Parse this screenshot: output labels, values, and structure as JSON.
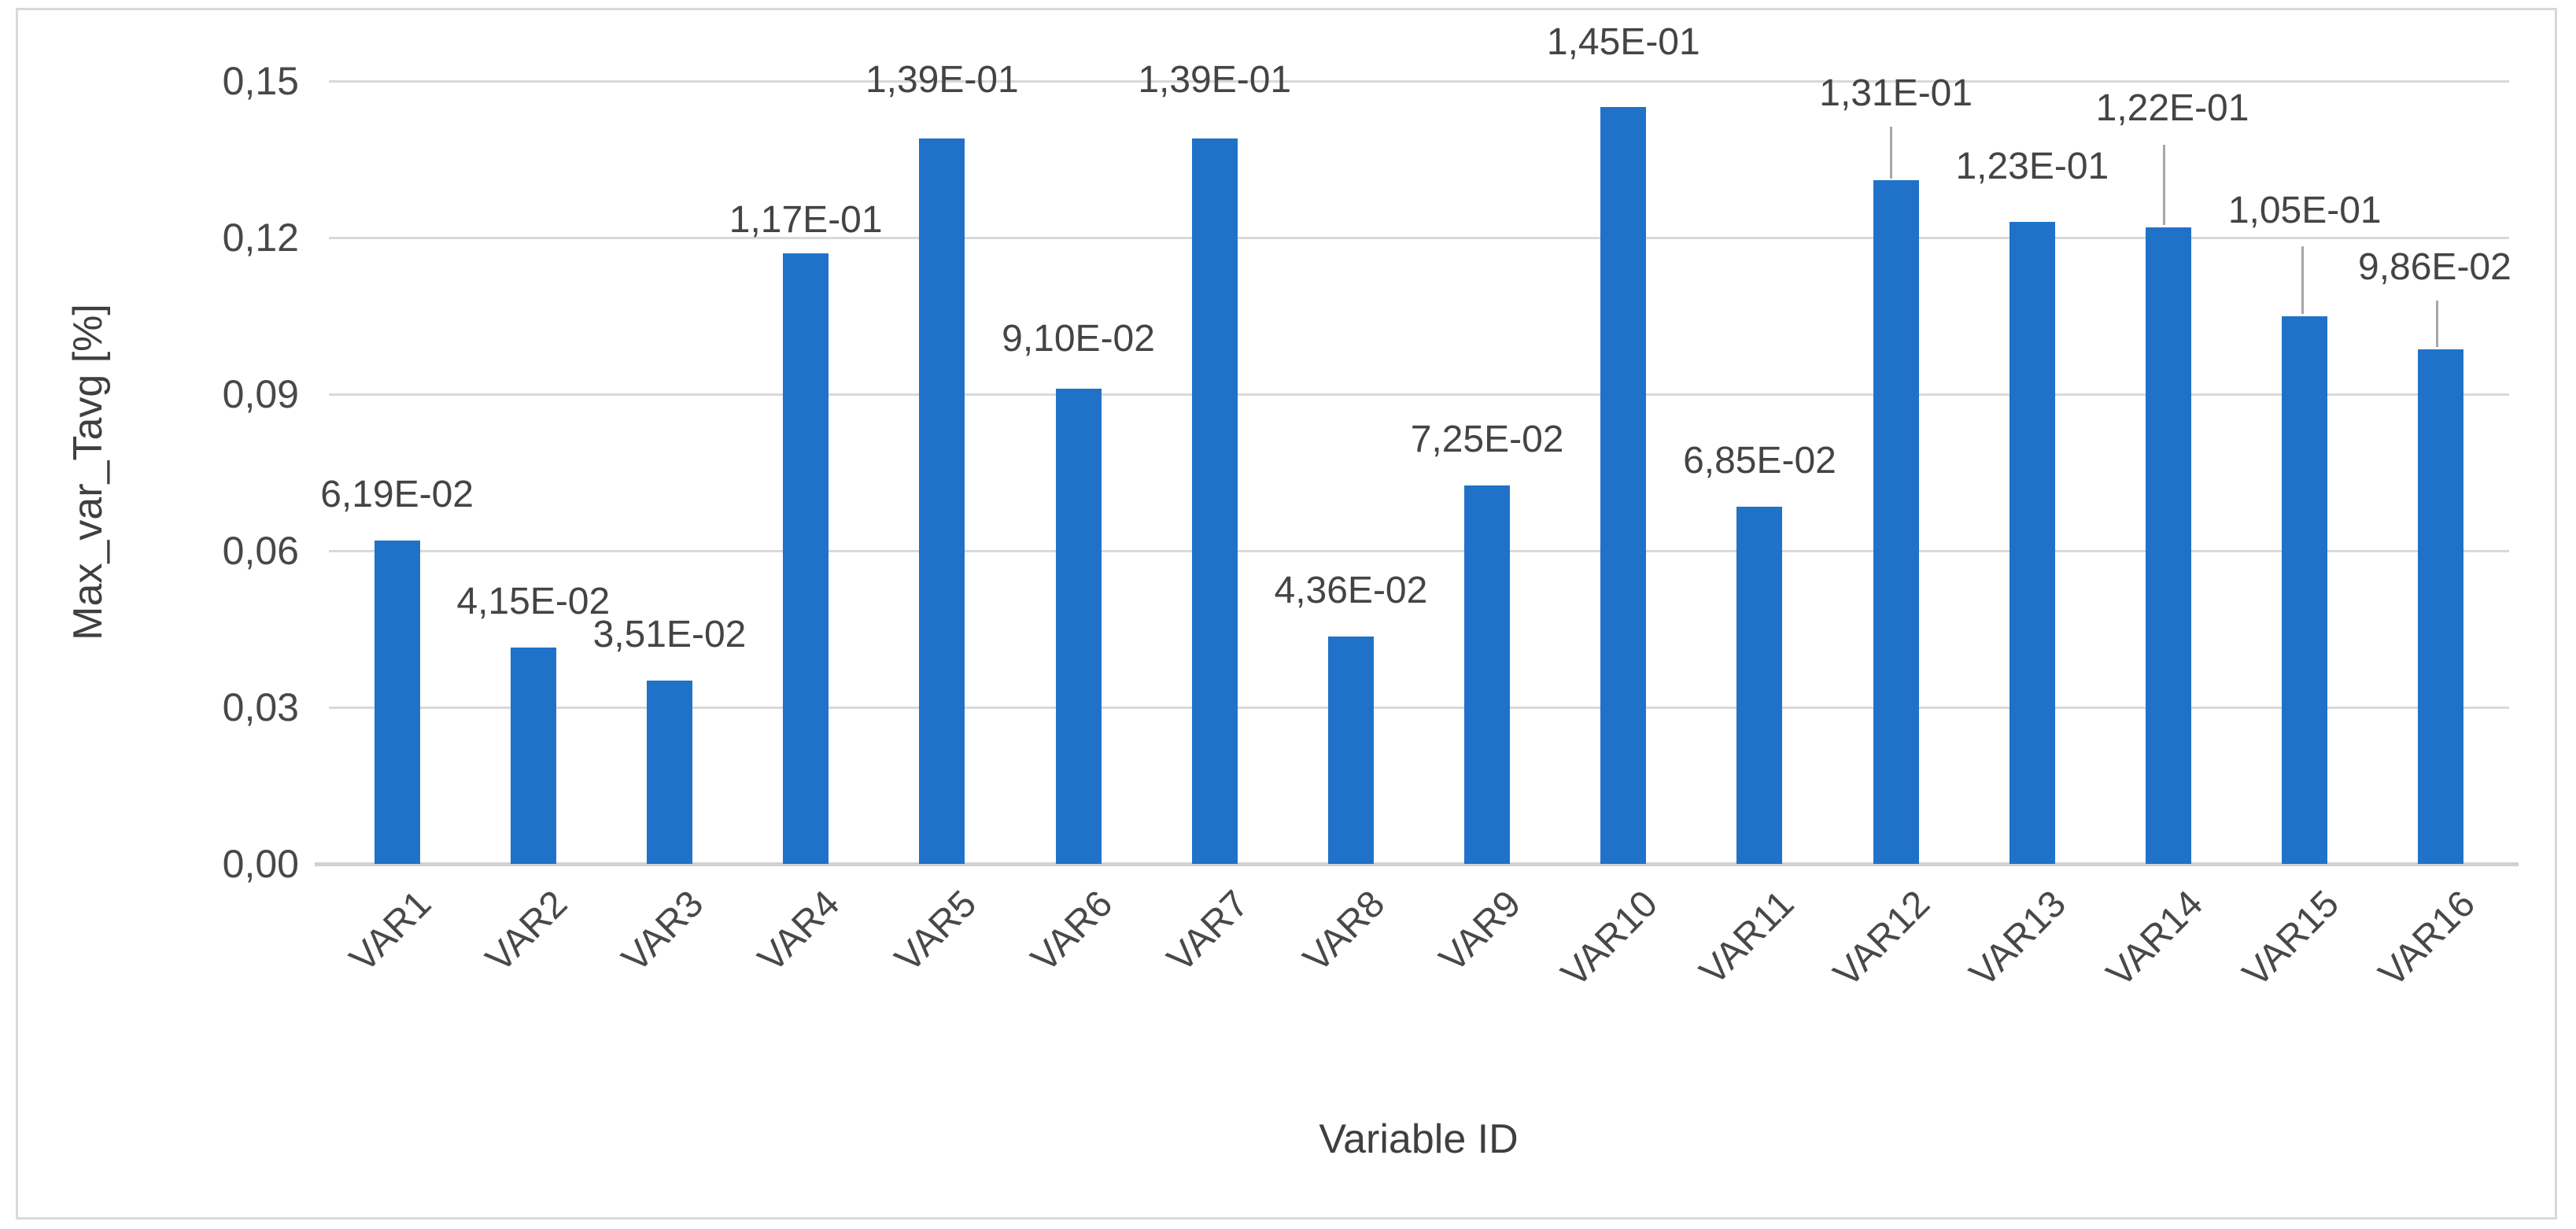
{
  "chart_data": {
    "type": "bar",
    "title": "",
    "xlabel": "Variable ID",
    "ylabel": "Max_var_Tavg [%]",
    "categories": [
      "VAR1",
      "VAR2",
      "VAR3",
      "VAR4",
      "VAR5",
      "VAR6",
      "VAR7",
      "VAR8",
      "VAR9",
      "VAR10",
      "VAR11",
      "VAR12",
      "VAR13",
      "VAR14",
      "VAR15",
      "VAR16"
    ],
    "values": [
      0.0619,
      0.0415,
      0.0351,
      0.117,
      0.139,
      0.091,
      0.139,
      0.0436,
      0.0725,
      0.145,
      0.0685,
      0.131,
      0.123,
      0.122,
      0.105,
      0.0986
    ],
    "value_labels": [
      "6,19E-02",
      "4,15E-02",
      "3,51E-02",
      "1,17E-01",
      "1,39E-01",
      "9,10E-02",
      "1,39E-01",
      "4,36E-02",
      "7,25E-02",
      "1,45E-01",
      "6,85E-02",
      "1,31E-01",
      "1,23E-01",
      "1,22E-01",
      "1,05E-01",
      "9,86E-02"
    ],
    "y_ticks": [
      "0,00",
      "0,03",
      "0,06",
      "0,09",
      "0,12",
      "0,15"
    ],
    "ylim": [
      0,
      0.15
    ],
    "grid": "horizontal-only",
    "legend": "none",
    "decimal_separator": ",",
    "bar_color": "#2072c8",
    "gridline_color": "#d9d9d9",
    "text_color": "#484848"
  }
}
